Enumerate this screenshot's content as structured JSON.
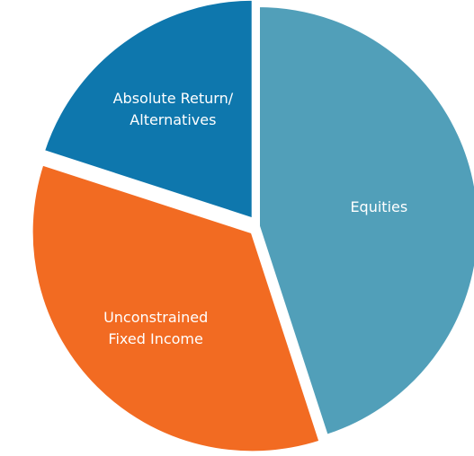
{
  "chart_data": {
    "type": "pie",
    "categories": [
      "Equities",
      "Unconstrained Fixed Income",
      "Absolute Return/ Alternatives"
    ],
    "values": [
      45,
      35,
      20
    ],
    "colors": [
      "#519fb9",
      "#f26b22",
      "#0e77ad"
    ]
  }
}
